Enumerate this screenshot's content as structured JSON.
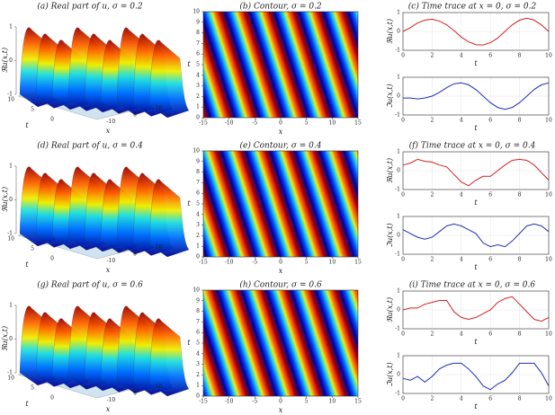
{
  "chart_data": [
    {
      "type": "surface",
      "title": "(a) Real part of u, σ = 0.2",
      "xlabel": "x",
      "ylabel": "t",
      "zlabel": "ℜu(x,t)",
      "xlim": [
        -15,
        15
      ],
      "ylim": [
        0,
        10
      ],
      "zlim": [
        -1,
        1
      ],
      "xticks": [
        -10,
        0,
        10
      ],
      "yticks": [
        0,
        5,
        10
      ],
      "zticks": [
        -1,
        0,
        1
      ]
    },
    {
      "type": "heatmap",
      "title": "(b) Contour, σ = 0.2",
      "xlabel": "x",
      "ylabel": "t",
      "xlim": [
        -15,
        15
      ],
      "ylim": [
        0,
        10
      ],
      "xticks": [
        -15,
        -10,
        -5,
        0,
        5,
        10,
        15
      ],
      "yticks": [
        0,
        1,
        2,
        3,
        4,
        5,
        6,
        7,
        8,
        9,
        10
      ]
    },
    {
      "type": "line",
      "title": "(c) Time trace at x = 0, σ = 0.2",
      "xlabel": "t",
      "ylabel": "ℜu(x,t)",
      "xlim": [
        0,
        10
      ],
      "ylim": [
        -1,
        1
      ],
      "xticks": [
        0,
        2,
        4,
        6,
        8,
        10
      ],
      "yticks": [
        -1,
        0,
        1
      ],
      "grid": true,
      "color": "#d62020",
      "x": [
        0,
        0.5,
        1,
        1.5,
        2,
        2.5,
        3,
        3.5,
        4,
        4.5,
        5,
        5.5,
        6,
        6.5,
        7,
        7.5,
        8,
        8.5,
        9,
        9.5,
        10
      ],
      "values": [
        0,
        0.2,
        0.45,
        0.6,
        0.65,
        0.55,
        0.35,
        0.05,
        -0.3,
        -0.55,
        -0.7,
        -0.72,
        -0.6,
        -0.35,
        0,
        0.35,
        0.6,
        0.7,
        0.6,
        0.35,
        0
      ]
    },
    {
      "type": "line",
      "xlabel": "t",
      "ylabel": "ℑu(x,t)",
      "xlim": [
        0,
        10
      ],
      "ylim": [
        -1,
        1
      ],
      "xticks": [
        0,
        2,
        4,
        6,
        8,
        10
      ],
      "yticks": [
        -1,
        0,
        1
      ],
      "grid": true,
      "color": "#1f2fb4",
      "x": [
        0,
        0.5,
        1,
        1.5,
        2,
        2.5,
        3,
        3.5,
        4,
        4.5,
        5,
        5.5,
        6,
        6.5,
        7,
        7.5,
        8,
        8.5,
        9,
        9.5,
        10
      ],
      "values": [
        -0.1,
        -0.1,
        -0.15,
        -0.1,
        0,
        0.2,
        0.45,
        0.65,
        0.7,
        0.6,
        0.35,
        0,
        -0.35,
        -0.6,
        -0.7,
        -0.6,
        -0.35,
        0,
        0.35,
        0.6,
        0.7
      ]
    },
    {
      "type": "surface",
      "title": "(d) Real part of u, σ = 0.4",
      "xlabel": "x",
      "ylabel": "t",
      "zlabel": "ℜu(x,t)",
      "xlim": [
        -15,
        15
      ],
      "ylim": [
        0,
        10
      ],
      "zlim": [
        -1,
        1
      ],
      "xticks": [
        -10,
        0,
        10
      ],
      "yticks": [
        0,
        5,
        10
      ],
      "zticks": [
        -1,
        0,
        1
      ]
    },
    {
      "type": "heatmap",
      "title": "(e) Contour, σ = 0.4",
      "xlabel": "x",
      "ylabel": "t",
      "xlim": [
        -15,
        15
      ],
      "ylim": [
        0,
        10
      ],
      "xticks": [
        -15,
        -10,
        -5,
        0,
        5,
        10,
        15
      ],
      "yticks": [
        0,
        1,
        2,
        3,
        4,
        5,
        6,
        7,
        8,
        9,
        10
      ]
    },
    {
      "type": "line",
      "title": "(f) Time trace at x = 0, σ = 0.4",
      "xlabel": "t",
      "ylabel": "ℜu(x,t)",
      "xlim": [
        0,
        10
      ],
      "ylim": [
        -1,
        1
      ],
      "xticks": [
        0,
        2,
        4,
        6,
        8,
        10
      ],
      "yticks": [
        -1,
        0,
        1
      ],
      "grid": true,
      "color": "#d62020",
      "x": [
        0,
        0.5,
        1,
        1.5,
        2,
        2.5,
        3,
        3.5,
        4,
        4.5,
        5,
        5.5,
        6,
        6.5,
        7,
        7.5,
        8,
        8.5,
        9,
        9.5,
        10
      ],
      "values": [
        0.3,
        0.4,
        0.6,
        0.5,
        0.45,
        0.3,
        0.2,
        -0.2,
        -0.6,
        -0.8,
        -0.5,
        -0.3,
        -0.3,
        0,
        0.3,
        0.55,
        0.6,
        0.55,
        0.3,
        -0.1,
        -0.5
      ]
    },
    {
      "type": "line",
      "xlabel": "t",
      "ylabel": "ℑu(x,t)",
      "xlim": [
        0,
        10
      ],
      "ylim": [
        -1,
        1
      ],
      "xticks": [
        0,
        2,
        4,
        6,
        8,
        10
      ],
      "yticks": [
        -1,
        0,
        1
      ],
      "grid": true,
      "color": "#1f2fb4",
      "x": [
        0,
        0.5,
        1,
        1.5,
        2,
        2.5,
        3,
        3.5,
        4,
        4.5,
        5,
        5.5,
        6,
        6.5,
        7,
        7.5,
        8,
        8.5,
        9,
        9.5,
        10
      ],
      "values": [
        0.3,
        0.1,
        -0.1,
        -0.2,
        -0.1,
        0.2,
        0.5,
        0.6,
        0.5,
        0.3,
        0.1,
        -0.4,
        -0.6,
        -0.5,
        -0.6,
        -0.3,
        0.1,
        0.5,
        0.6,
        0.5,
        0.2
      ]
    },
    {
      "type": "surface",
      "title": "(g) Real part of u, σ = 0.6",
      "xlabel": "x",
      "ylabel": "t",
      "zlabel": "ℜu(x,t)",
      "xlim": [
        -15,
        15
      ],
      "ylim": [
        0,
        10
      ],
      "zlim": [
        -1,
        1
      ],
      "xticks": [
        -10,
        0,
        10
      ],
      "yticks": [
        0,
        5,
        10
      ],
      "zticks": [
        -1,
        0,
        1
      ]
    },
    {
      "type": "heatmap",
      "title": "(h) Contour, σ = 0.6",
      "xlabel": "x",
      "ylabel": "t",
      "xlim": [
        -15,
        15
      ],
      "ylim": [
        0,
        10
      ],
      "xticks": [
        -15,
        -10,
        -5,
        0,
        5,
        10,
        15
      ],
      "yticks": [
        0,
        1,
        2,
        3,
        4,
        5,
        6,
        7,
        8,
        9,
        10
      ]
    },
    {
      "type": "line",
      "title": "(i) Time trace at x = 0, σ = 0.6",
      "xlabel": "t",
      "ylabel": "ℜu(x,t)",
      "xlim": [
        0,
        10
      ],
      "ylim": [
        -1,
        1
      ],
      "xticks": [
        0,
        2,
        4,
        6,
        8,
        10
      ],
      "yticks": [
        -1,
        0,
        1
      ],
      "grid": true,
      "color": "#d62020",
      "x": [
        0,
        0.5,
        1,
        1.5,
        2,
        2.5,
        3,
        3.5,
        4,
        4.5,
        5,
        5.5,
        6,
        6.5,
        7,
        7.5,
        8,
        8.5,
        9,
        9.5,
        10
      ],
      "values": [
        0,
        0.1,
        0.1,
        0.3,
        0.4,
        0.5,
        0.5,
        -0.1,
        -0.4,
        -0.5,
        -0.4,
        -0.2,
        0,
        0.4,
        0.6,
        0.7,
        0.3,
        -0.1,
        -0.5,
        -0.6,
        -0.4
      ]
    },
    {
      "type": "line",
      "xlabel": "t",
      "ylabel": "ℑu(x,t)",
      "xlim": [
        0,
        10
      ],
      "ylim": [
        -1,
        1
      ],
      "xticks": [
        0,
        2,
        4,
        6,
        8,
        10
      ],
      "yticks": [
        -1,
        0,
        1
      ],
      "grid": true,
      "color": "#1f2fb4",
      "x": [
        0,
        0.5,
        1,
        1.5,
        2,
        2.5,
        3,
        3.5,
        4,
        4.5,
        5,
        5.5,
        6,
        6.5,
        7,
        7.5,
        8,
        8.5,
        9,
        9.5,
        10
      ],
      "values": [
        -0.2,
        -0.3,
        -0.1,
        -0.4,
        -0.1,
        0.3,
        0.5,
        0.6,
        0.6,
        0.3,
        -0.1,
        -0.6,
        -0.8,
        -0.5,
        -0.3,
        0.1,
        0.6,
        0.6,
        0.6,
        0.1,
        -0.6
      ]
    }
  ]
}
